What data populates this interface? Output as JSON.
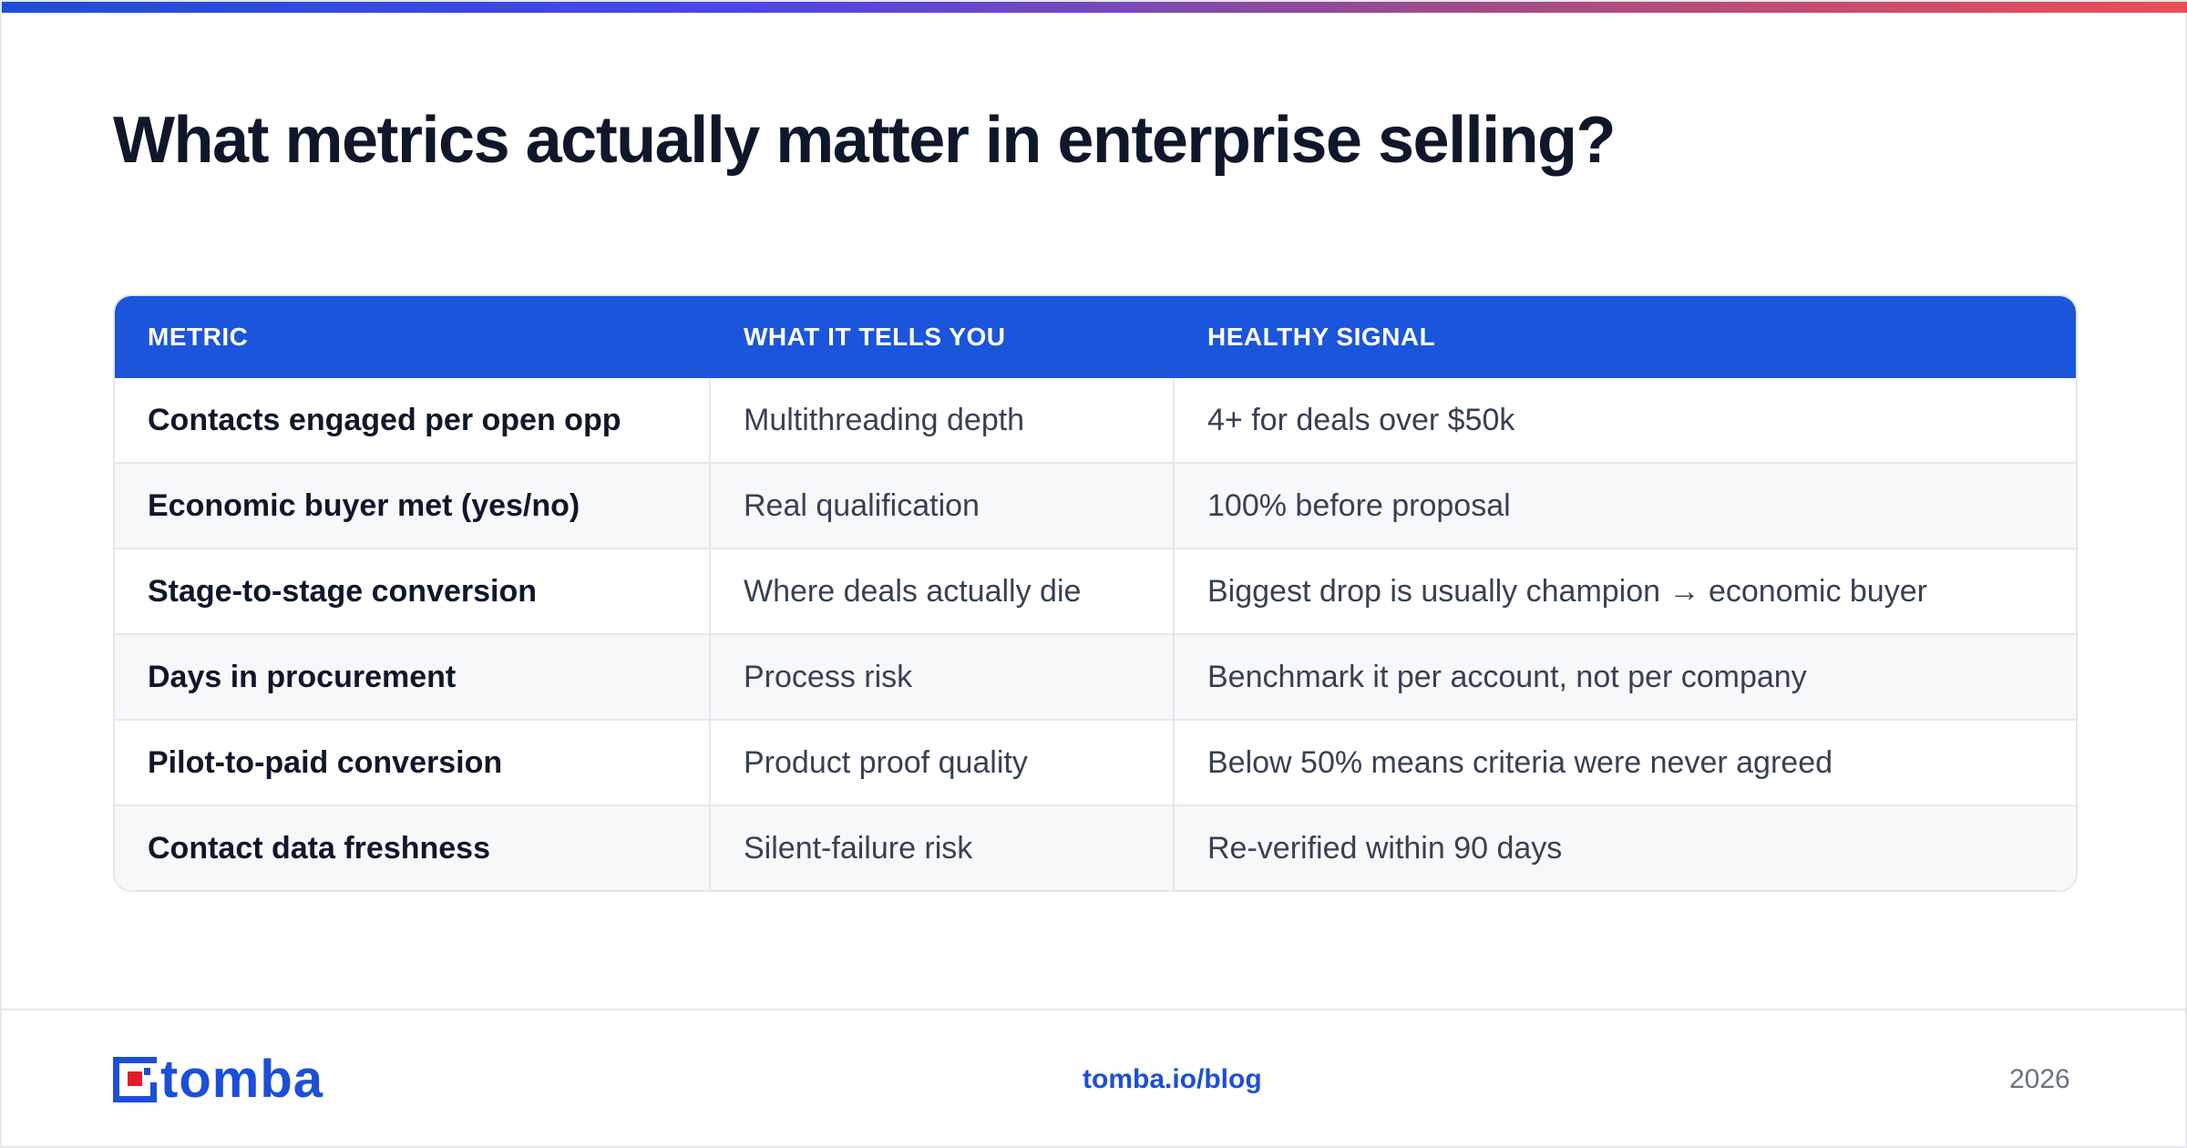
{
  "accent_bar": {
    "colors": [
      "#1d4ed8",
      "#4f46e5",
      "#9d4b8c",
      "#e94f57"
    ]
  },
  "title": "What metrics actually matter in enterprise selling?",
  "table": {
    "header_color": "#1b55db",
    "columns": [
      "METRIC",
      "WHAT IT TELLS YOU",
      "HEALTHY SIGNAL"
    ],
    "rows": [
      [
        "Contacts engaged per open opp",
        "Multithreading depth",
        "4+ for deals over $50k"
      ],
      [
        "Economic buyer met (yes/no)",
        "Real qualification",
        "100% before proposal"
      ],
      [
        "Stage-to-stage conversion",
        "Where deals actually die",
        "Biggest drop is usually champion → economic buyer"
      ],
      [
        "Days in procurement",
        "Process risk",
        "Benchmark it per account, not per company"
      ],
      [
        "Pilot-to-paid conversion",
        "Product proof quality",
        "Below 50% means criteria were never agreed"
      ],
      [
        "Contact data freshness",
        "Silent-failure risk",
        "Re-verified within 90 days"
      ]
    ]
  },
  "footer": {
    "logo_text": "tomba",
    "logo_icon": "tomba-logo-icon",
    "link": "tomba.io/blog",
    "year": "2026",
    "brand_color": "#1d4ed8"
  }
}
